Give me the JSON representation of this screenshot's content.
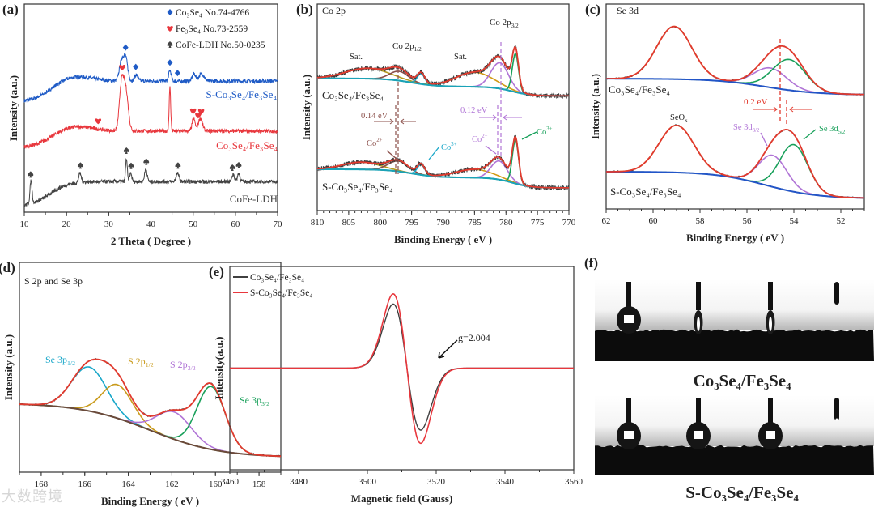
{
  "watermark": "大数跨境",
  "chart_data": [
    {
      "panel": "(a)",
      "type": "line",
      "title": "",
      "xlabel": "2 Theta ( Degree )",
      "ylabel": "Intensity (a.u.)",
      "xlim": [
        10,
        70
      ],
      "ylim": [
        0,
        10
      ],
      "xticks": [
        10,
        20,
        30,
        40,
        50,
        60,
        70
      ],
      "legend": [
        {
          "marker": "diamond",
          "label": "Co₃Se₄ No.74-4766",
          "color": "#1f5bc6"
        },
        {
          "marker": "heart",
          "label": "Fe₃Se₄  No.73-2559",
          "color": "#e8373d"
        },
        {
          "marker": "spade",
          "label": "CoFe-LDH  No.50-0235",
          "color": "#444444"
        }
      ],
      "legend_position": "top-right",
      "series": [
        {
          "name": "S-Co₃Se₄/Fe₃Se₄",
          "color": "#1f5bc6",
          "offset": 5.3,
          "rise": 1.0,
          "peaks": [
            [
              33.0,
              0.9,
              0.5
            ],
            [
              34.0,
              1.1,
              0.5
            ],
            [
              36.5,
              0.3,
              0.4
            ],
            [
              44.5,
              0.5,
              0.3
            ],
            [
              50.2,
              0.35,
              0.4
            ],
            [
              52.0,
              0.35,
              0.6
            ]
          ],
          "markers": {
            "type": "diamond",
            "x": [
              34.0,
              36.4,
              44.5,
              46.3
            ]
          }
        },
        {
          "name": "Co₃Se₄/Fe₃Se₄",
          "color": "#e8373d",
          "offset": 3.1,
          "rise": 0.8,
          "peaks": [
            [
              33.0,
              2.0,
              0.5
            ],
            [
              34.0,
              2.0,
              0.6
            ],
            [
              44.5,
              2.1,
              0.18
            ],
            [
              50.1,
              0.6,
              0.35
            ],
            [
              51.7,
              0.6,
              0.5
            ]
          ],
          "markers": {
            "type": "heart",
            "x": [
              27.5,
              33.2,
              50.0,
              51.2,
              51.9
            ]
          }
        },
        {
          "name": "CoFe-LDH",
          "color": "#444444",
          "offset": 0.27,
          "rise": 1.2,
          "peaks": [
            [
              11.6,
              1.1,
              0.25
            ],
            [
              23.2,
              0.45,
              0.3
            ],
            [
              34.2,
              1.1,
              0.2
            ],
            [
              35.2,
              0.4,
              0.25
            ],
            [
              38.8,
              0.6,
              0.3
            ],
            [
              46.3,
              0.4,
              0.35
            ],
            [
              59.5,
              0.35,
              0.3
            ],
            [
              60.8,
              0.4,
              0.3
            ]
          ],
          "markers": {
            "type": "spade",
            "x": [
              11.5,
              23.3,
              34.2,
              35.3,
              38.9,
              46.4,
              59.3,
              60.8
            ]
          }
        }
      ]
    },
    {
      "panel": "(b)",
      "type": "line",
      "title": "Co 2p",
      "xlabel": "Binding Energy ( eV )",
      "ylabel": "Intensity (a.u.)",
      "xlim": [
        810,
        770
      ],
      "ylim": [
        0,
        10
      ],
      "xticks": [
        810,
        805,
        800,
        795,
        790,
        785,
        780,
        775,
        770
      ],
      "series": [
        {
          "name": "Co₃Se₄/Fe₃Se₄",
          "baseline": [
            5.55,
            0.45,
            0.4
          ],
          "components": [
            {
              "label": "Sat.",
              "center": 802,
              "amp": 0.5,
              "width": 3.5,
              "color": "#b59a1e"
            },
            {
              "label": "Co2+",
              "center": 797,
              "amp": 0.45,
              "width": 1.5,
              "color": "#8b4f4a"
            },
            {
              "label": "Co3+",
              "center": 793.5,
              "amp": 0.5,
              "width": 0.6,
              "color": "#19a7c9"
            },
            {
              "label": "Sat.",
              "center": 785,
              "amp": 0.7,
              "width": 3.0,
              "color": "#d19a14"
            },
            {
              "label": "Co2+",
              "center": 781,
              "amp": 1.25,
              "width": 1.4,
              "color": "#b074d6"
            },
            {
              "label": "Co3+",
              "center": 778.5,
              "amp": 1.85,
              "width": 0.5,
              "color": "#18a05a"
            }
          ]
        },
        {
          "name": "S-Co₃Se₄/Fe₃Se₄",
          "baseline": [
            1.1,
            0.5,
            0.4
          ],
          "components": [
            {
              "label": "Sat.",
              "center": 803,
              "amp": 0.35,
              "width": 3.0,
              "color": "#b59a1e"
            },
            {
              "label": "Co2+",
              "center": 797.1,
              "amp": 0.5,
              "width": 1.6,
              "color": "#8b4f4a"
            },
            {
              "label": "Co3+",
              "center": 793.5,
              "amp": 0.5,
              "width": 0.6,
              "color": "#19a7c9"
            },
            {
              "label": "Sat.",
              "center": 785,
              "amp": 0.4,
              "width": 3.0,
              "color": "#d19a14"
            },
            {
              "label": "Co2+",
              "center": 781.1,
              "amp": 0.9,
              "width": 1.3,
              "color": "#b074d6"
            },
            {
              "label": "Co3+",
              "center": 778.5,
              "amp": 2.1,
              "width": 0.5,
              "color": "#18a05a"
            }
          ]
        }
      ],
      "annotations": {
        "sat1": "Sat.",
        "sat2": "Sat.",
        "co2p12": {
          "main": "Co 2p",
          "sub": "1/2"
        },
        "co2p32": {
          "main": "Co 2p",
          "sub": "3/2"
        },
        "shift1": "0.14 eV",
        "shift2": "0.12 eV",
        "co2a": {
          "main": "Co",
          "sup": "2+"
        },
        "co3a": {
          "main": "Co",
          "sup": "3+"
        },
        "co2b": {
          "main": "Co",
          "sup": "2+"
        },
        "co3b": {
          "main": "Co",
          "sup": "3+"
        }
      }
    },
    {
      "panel": "(c)",
      "type": "line",
      "title": "Se 3d",
      "xlabel": "Binding Energy ( eV )",
      "ylabel": "Intensity (a.u.)",
      "xlim": [
        62,
        51
      ],
      "ylim": [
        0,
        100
      ],
      "xticks": [
        62,
        60,
        58,
        56,
        54,
        52
      ],
      "series": [
        {
          "name": "Co₃Se₄/Fe₃Se₄",
          "baseline": [
            55.7,
            7.9
          ],
          "components": [
            {
              "label": "SeOx",
              "center": 59.1,
              "amp": 25.7,
              "width": 0.75,
              "color": "#d19a14"
            },
            {
              "label": "Se 3d3/2",
              "center": 55.0,
              "amp": 9.5,
              "width": 0.7,
              "color": "#b074d6"
            },
            {
              "label": "Se 3d5/2",
              "center": 54.2,
              "amp": 15,
              "width": 0.7,
              "color": "#18a05a"
            }
          ]
        },
        {
          "name": "S-Co₃Se₄/Fe₃Se₄",
          "baseline": [
            5.1,
            13.1
          ],
          "components": [
            {
              "label": "SeOx",
              "center": 59.0,
              "amp": 23,
              "width": 0.75,
              "color": "#d19a14"
            },
            {
              "label": "Se 3d3/2",
              "center": 54.9,
              "amp": 15.4,
              "width": 0.6,
              "color": "#b074d6"
            },
            {
              "label": "Se 3d5/2",
              "center": 54.0,
              "amp": 23,
              "width": 0.6,
              "color": "#18a05a"
            }
          ]
        }
      ],
      "annotations": {
        "shift": "0.2 eV",
        "seox": {
          "main": "SeO",
          "sub": "x"
        },
        "se32": {
          "main": "Se 3d",
          "sub": "3/2"
        },
        "se52": {
          "main": "Se 3d",
          "sub": "5/2"
        }
      }
    },
    {
      "panel": "(d)",
      "type": "line",
      "title": "S 2p and Se 3p",
      "xlabel": "Binding Energy ( eV )",
      "ylabel": "Intensity (a.u.)",
      "xlim": [
        169,
        157
      ],
      "ylim": [
        0,
        100
      ],
      "xticks": [
        168,
        166,
        164,
        162,
        160,
        158
      ],
      "series": [
        {
          "name": "S 2p and Se 3p",
          "baseline": [
            7,
            26
          ],
          "components": [
            {
              "label": {
                "main": "Se 3p",
                "sub": "1/2"
              },
              "center": 165.8,
              "amp": 21,
              "width": 0.8,
              "color": "#19a7c9"
            },
            {
              "label": {
                "main": "S 2p",
                "sub": "1/2"
              },
              "center": 164.5,
              "amp": 16,
              "width": 0.7,
              "color": "#c99a1a"
            },
            {
              "label": {
                "main": "S 2p",
                "sub": "3/2"
              },
              "center": 161.9,
              "amp": 13,
              "width": 0.8,
              "color": "#b074d6"
            },
            {
              "label": {
                "main": "Se 3p",
                "sub": "3/2"
              },
              "center": 160.2,
              "amp": 30,
              "width": 0.65,
              "color": "#18a05a"
            }
          ]
        }
      ]
    },
    {
      "panel": "(e)",
      "type": "line",
      "title": "",
      "xlabel": "Magnetic field (Gauss)",
      "ylabel": "Intensity(a.u.)",
      "xlim": [
        3460,
        3560
      ],
      "ylim": [
        -1,
        1
      ],
      "xticks": [
        3460,
        3480,
        3500,
        3520,
        3540,
        3560
      ],
      "legend_position": "top-left",
      "series": [
        {
          "name": "Co₃Se₄/Fe₃Se₄",
          "color": "#404040",
          "center": 3511.5,
          "sigma": 4.0,
          "max": 0.63,
          "min": -0.61
        },
        {
          "name": "S-Co₃Se₄/Fe₃Se₄",
          "color": "#e8373d",
          "center": 3511.5,
          "sigma": 4.0,
          "max": 0.73,
          "min": -0.74
        }
      ],
      "annotations": {
        "g": "g=2.004"
      }
    }
  ],
  "panel_f": {
    "label": "(f)",
    "images": [
      {
        "caption": "Co₃Se₄/Fe₃Se₄",
        "droplets": [
          "sphere",
          "spindle",
          "spindle",
          "none"
        ]
      },
      {
        "caption": "S-Co₃Se₄/Fe₃Se₄",
        "droplets": [
          "sphere",
          "sphere",
          "sphere",
          "small"
        ]
      }
    ]
  }
}
